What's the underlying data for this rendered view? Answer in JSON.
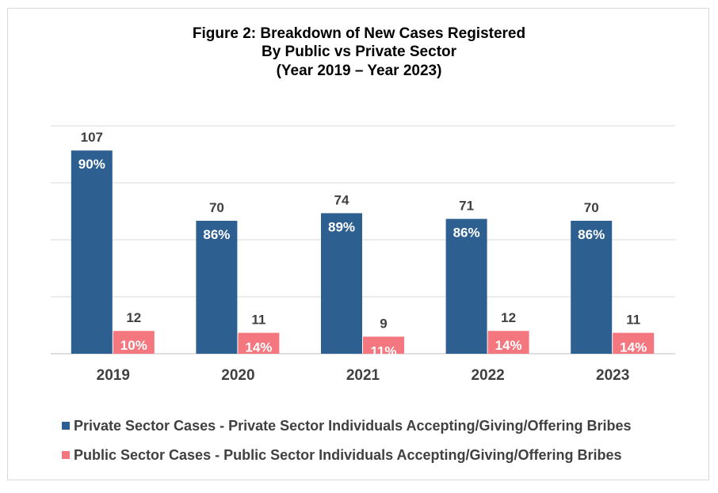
{
  "chart_data": {
    "type": "bar",
    "title": [
      "Figure 2: Breakdown of New Cases Registered",
      "By Public vs Private Sector",
      "(Year 2019 – Year 2023)"
    ],
    "categories": [
      "2019",
      "2020",
      "2021",
      "2022",
      "2023"
    ],
    "series": [
      {
        "name": "Private Sector Cases - Private Sector Individuals Accepting/Giving/Offering Bribes",
        "color": "#2e5f91",
        "values": [
          107,
          70,
          74,
          71,
          70
        ],
        "percent_labels": [
          "90%",
          "86%",
          "89%",
          "86%",
          "86%"
        ]
      },
      {
        "name": "Public Sector Cases - Public Sector Individuals Accepting/Giving/Offering Bribes",
        "color": "#f4777f",
        "values": [
          12,
          11,
          9,
          12,
          11
        ],
        "percent_labels": [
          "10%",
          "14%",
          "11%",
          "14%",
          "14%"
        ]
      }
    ],
    "ylim": [
      0,
      120
    ],
    "gridlines": [
      0,
      30,
      60,
      90,
      120
    ],
    "y_tick_labels_visible": false,
    "legend_position": "bottom"
  }
}
